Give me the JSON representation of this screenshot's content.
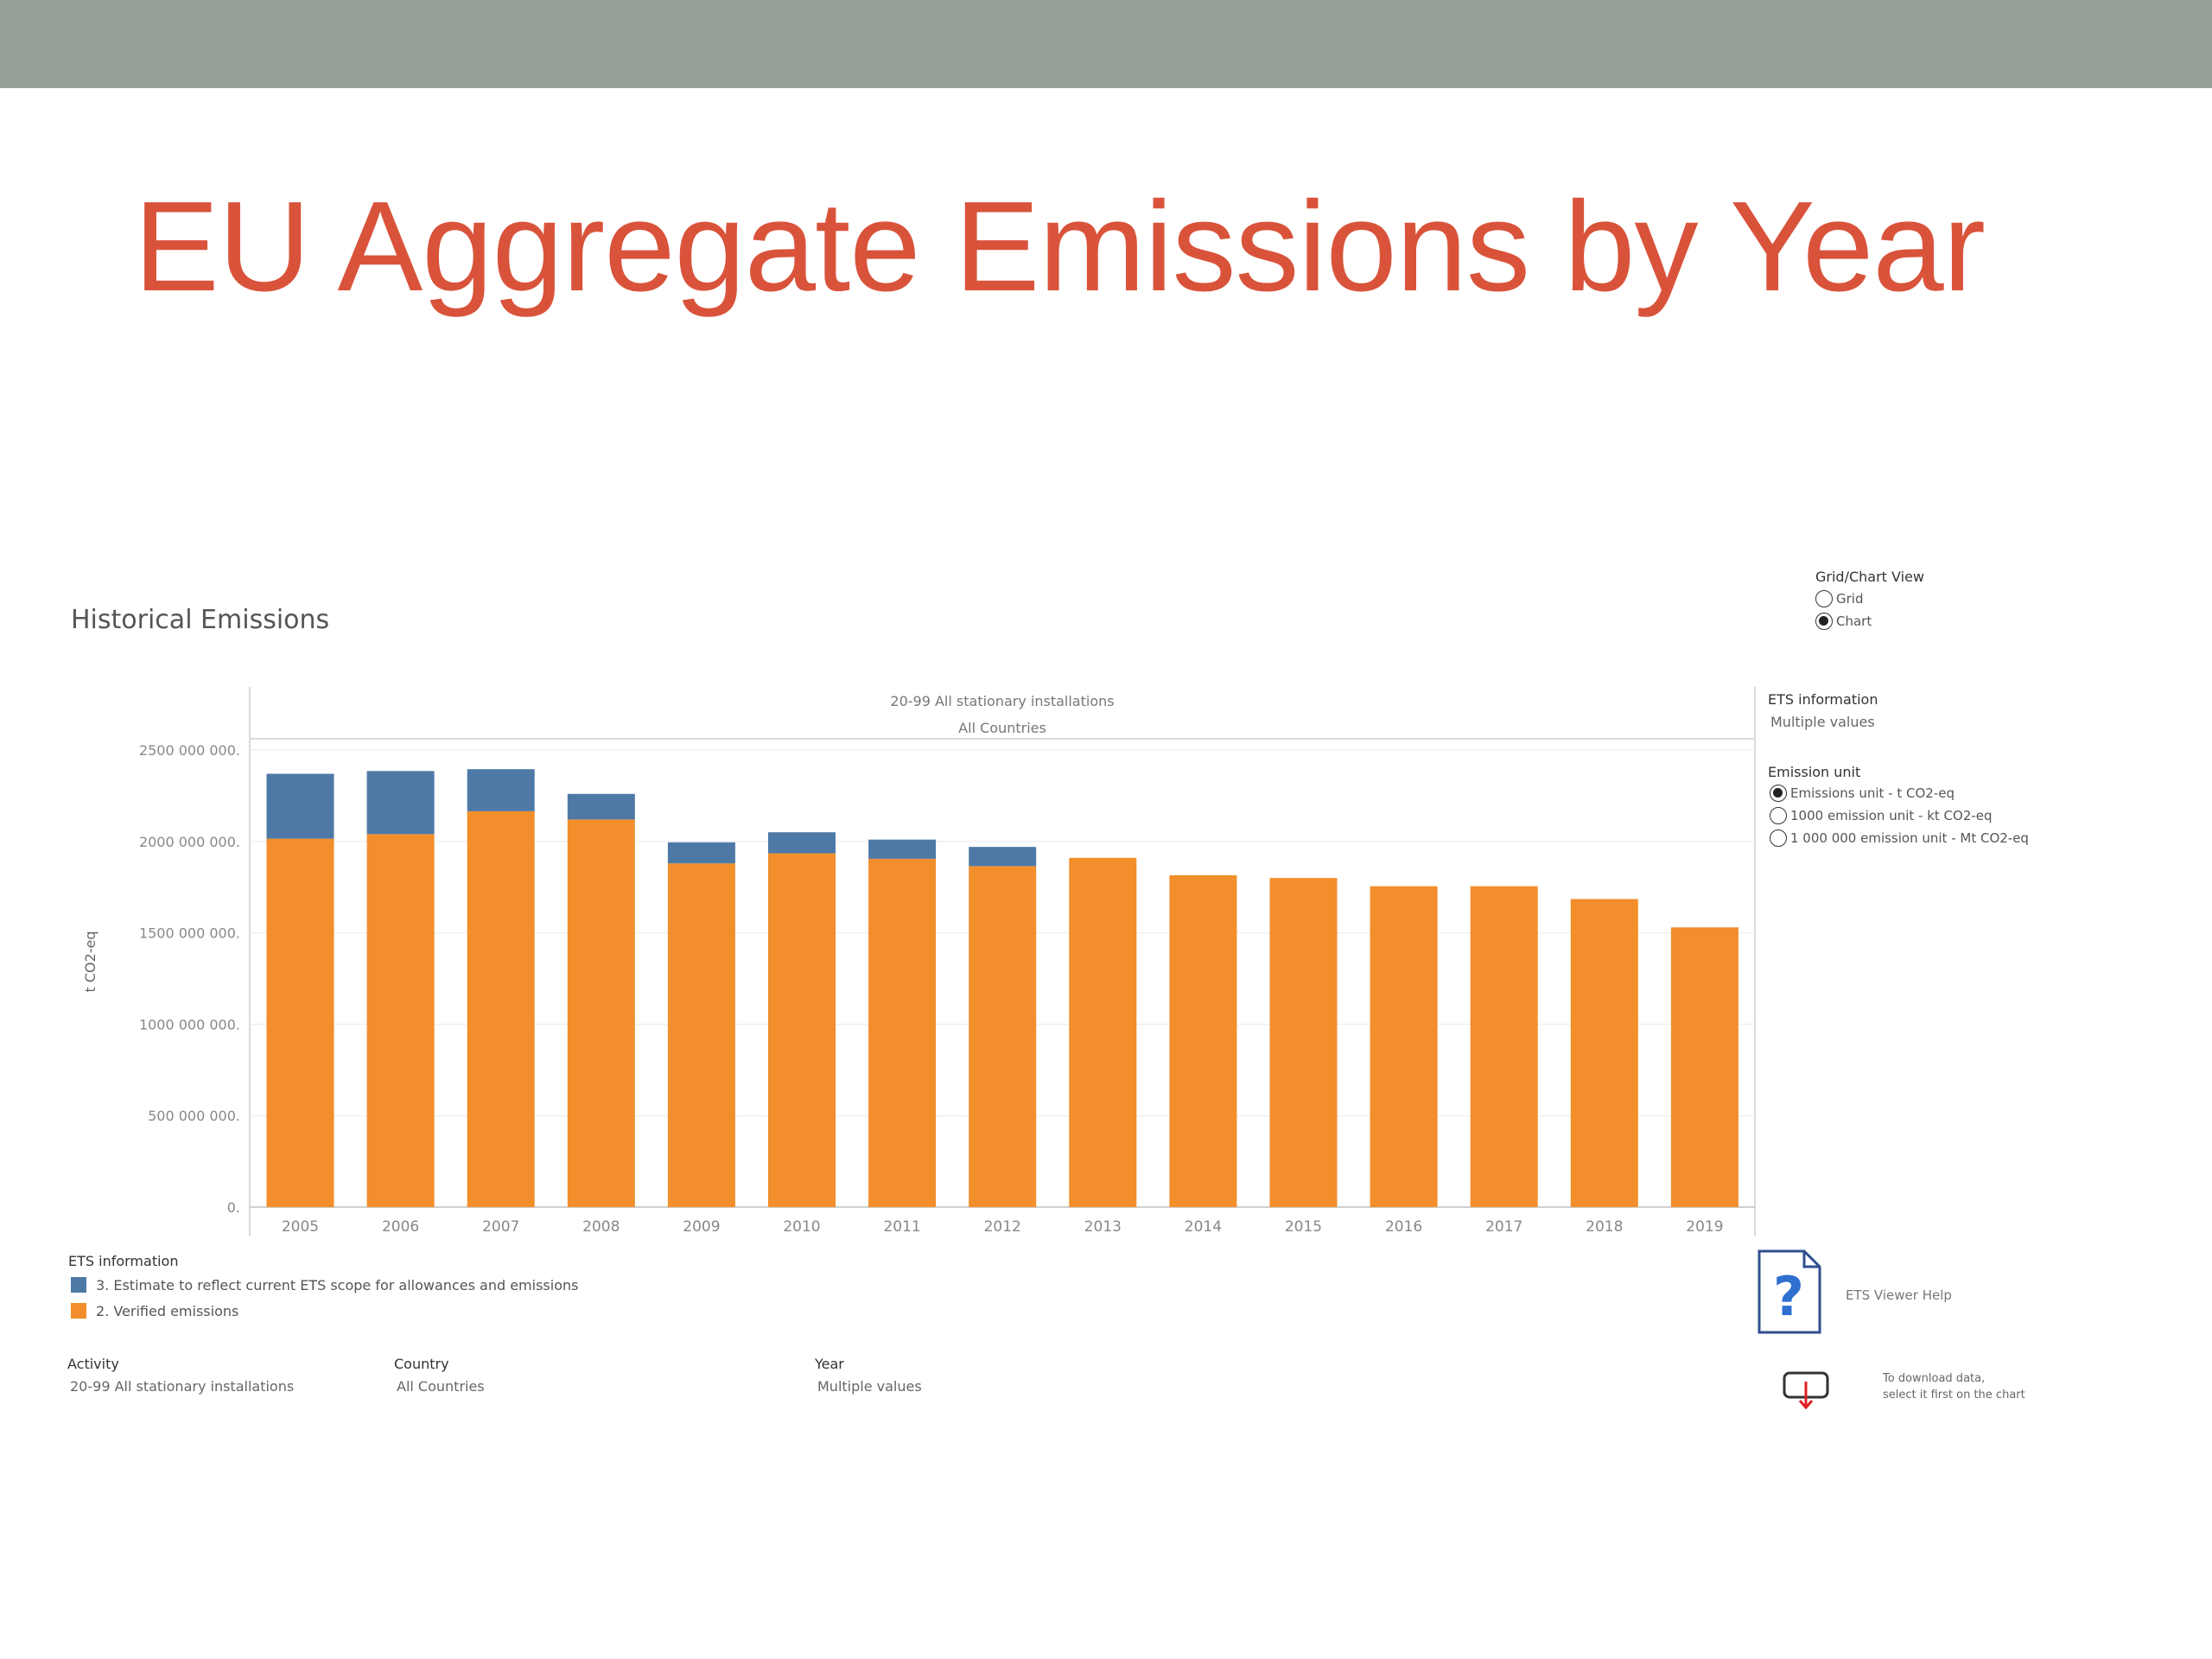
{
  "slide": {
    "title": "EU Aggregate Emissions by Year"
  },
  "dashboard": {
    "title": "Historical Emissions",
    "view_toggle": {
      "label": "Grid/Chart View",
      "options": [
        "Grid",
        "Chart"
      ],
      "selected": "Chart"
    },
    "ets_info_filter": {
      "label": "ETS information",
      "value": "Multiple values"
    },
    "emission_unit": {
      "label": "Emission unit",
      "options": [
        "Emissions unit - t CO2-eq",
        "1000 emission unit - kt CO2-eq",
        "1 000 000 emission unit - Mt CO2-eq"
      ],
      "selected": "Emissions unit - t CO2-eq"
    },
    "legend": {
      "title": "ETS information",
      "items": [
        {
          "label": "3. Estimate to reflect current ETS scope for allowances and emissions",
          "color": "#4e79a7"
        },
        {
          "label": "2. Verified emissions",
          "color": "#f28e2b"
        }
      ]
    },
    "filters": {
      "activity": {
        "label": "Activity",
        "value": "20-99 All stationary installations"
      },
      "country": {
        "label": "Country",
        "value": "All Countries"
      },
      "year": {
        "label": "Year",
        "value": "Multiple values"
      }
    },
    "help": {
      "label": "ETS Viewer Help",
      "icon": "question-document-icon"
    },
    "download": {
      "line1": "To download data,",
      "line2": "select it first on the chart",
      "icon": "download-icon"
    }
  },
  "chart_data": {
    "type": "bar",
    "stacked": true,
    "header_line1": "20-99 All stationary installations",
    "header_line2": "All Countries",
    "ylabel": "t CO2-eq",
    "ylim": [
      0,
      2650000000
    ],
    "yticks": [
      0,
      500000000,
      1000000000,
      1500000000,
      2000000000,
      2500000000
    ],
    "ytick_labels": [
      "0.",
      "500 000 000.",
      "1000 000 000.",
      "1500 000 000.",
      "2000 000 000.",
      "2500 000 000."
    ],
    "categories": [
      "2005",
      "2006",
      "2007",
      "2008",
      "2009",
      "2010",
      "2011",
      "2012",
      "2013",
      "2014",
      "2015",
      "2016",
      "2017",
      "2018",
      "2019"
    ],
    "series": [
      {
        "name": "2. Verified emissions",
        "color": "#f28e2b",
        "values": [
          2015000000,
          2040000000,
          2165000000,
          2120000000,
          1880000000,
          1935000000,
          1905000000,
          1865000000,
          1910000000,
          1815000000,
          1800000000,
          1755000000,
          1755000000,
          1685000000,
          1530000000
        ]
      },
      {
        "name": "3. Estimate to reflect current ETS scope for allowances and emissions",
        "color": "#4e79a7",
        "values": [
          355000000,
          345000000,
          230000000,
          140000000,
          115000000,
          115000000,
          105000000,
          105000000,
          0,
          0,
          0,
          0,
          0,
          0,
          0
        ]
      }
    ],
    "grid": true
  }
}
